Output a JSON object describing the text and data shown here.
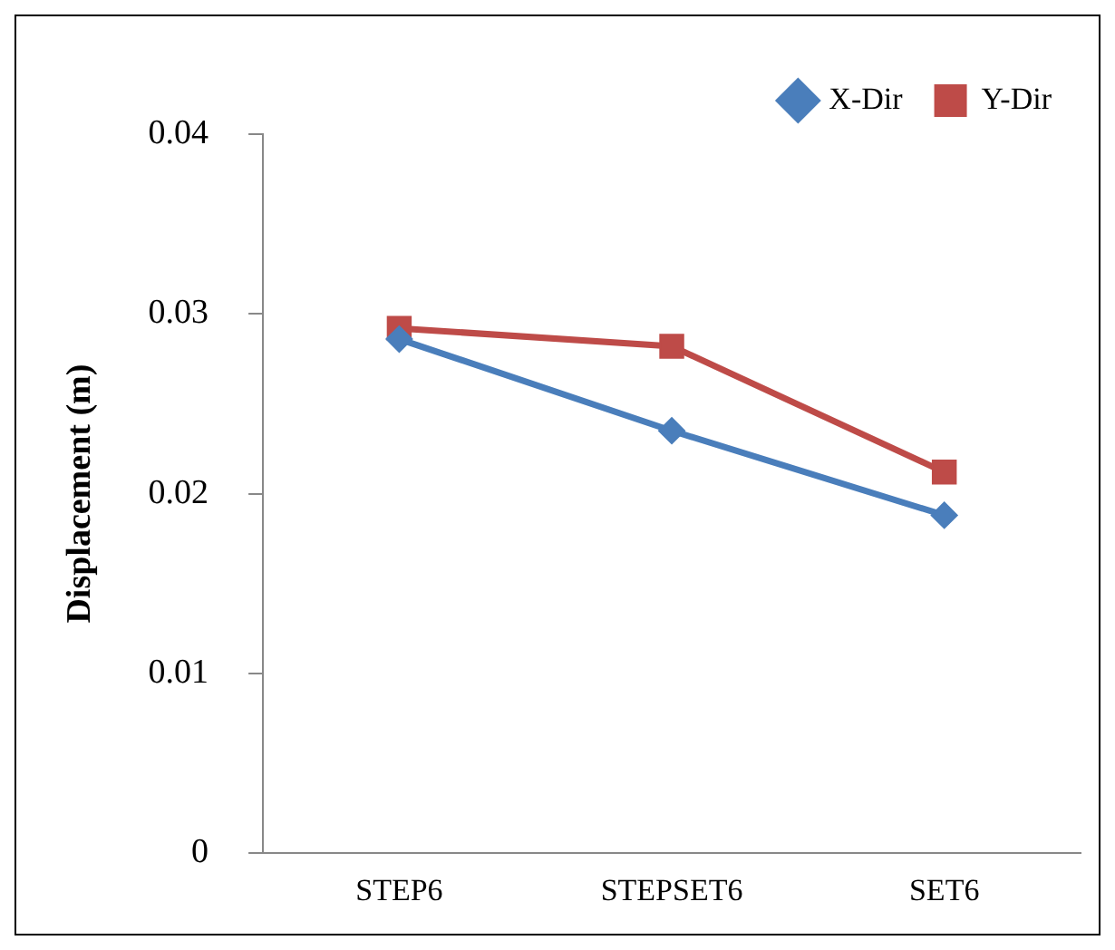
{
  "chart_data": {
    "type": "line",
    "ylabel": "Displacement (m)",
    "categories": [
      "STEP6",
      "STEPSET6",
      "SET6"
    ],
    "series": [
      {
        "name": "X-Dir",
        "color": "#4a7ebb",
        "marker": "diamond",
        "values": [
          0.0286,
          0.0235,
          0.0188
        ]
      },
      {
        "name": "Y-Dir",
        "color": "#be4b48",
        "marker": "square",
        "values": [
          0.0292,
          0.0282,
          0.0212
        ]
      }
    ],
    "ylim": [
      0,
      0.04
    ],
    "yticks": [
      0,
      0.01,
      0.02,
      0.03,
      0.04
    ],
    "grid": false,
    "legend": "top right"
  }
}
